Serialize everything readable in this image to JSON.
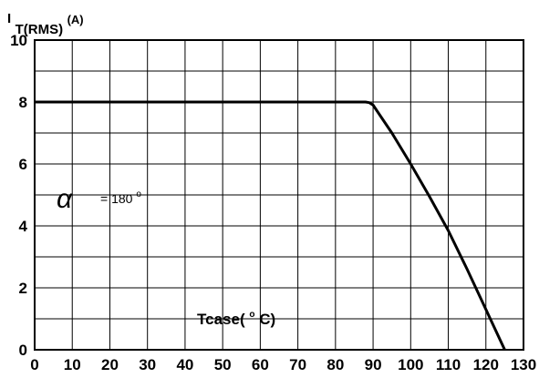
{
  "chart_data": {
    "type": "line",
    "ylabel": {
      "main": "I",
      "sub": "T(RMS)",
      "unit": "(A)"
    },
    "xlabel": {
      "text": "Tcase(",
      "degree": "o",
      "tail": "C)"
    },
    "annotation": {
      "symbol": "α",
      "text": "= 180",
      "degree": "o"
    },
    "xlim": [
      0,
      130
    ],
    "ylim": [
      0,
      10
    ],
    "x_ticks": [
      "0",
      "10",
      "20",
      "30",
      "40",
      "50",
      "60",
      "70",
      "80",
      "90",
      "100",
      "110",
      "120",
      "130"
    ],
    "y_ticks": [
      "0",
      "2",
      "4",
      "6",
      "8",
      "10"
    ],
    "grid": true,
    "series": [
      {
        "x": [
          0,
          88,
          89,
          90,
          95,
          100,
          105,
          110,
          115,
          120,
          125
        ],
        "y": [
          8,
          8,
          7.98,
          7.9,
          7.0,
          6.0,
          4.95,
          3.85,
          2.6,
          1.3,
          0
        ]
      }
    ]
  }
}
